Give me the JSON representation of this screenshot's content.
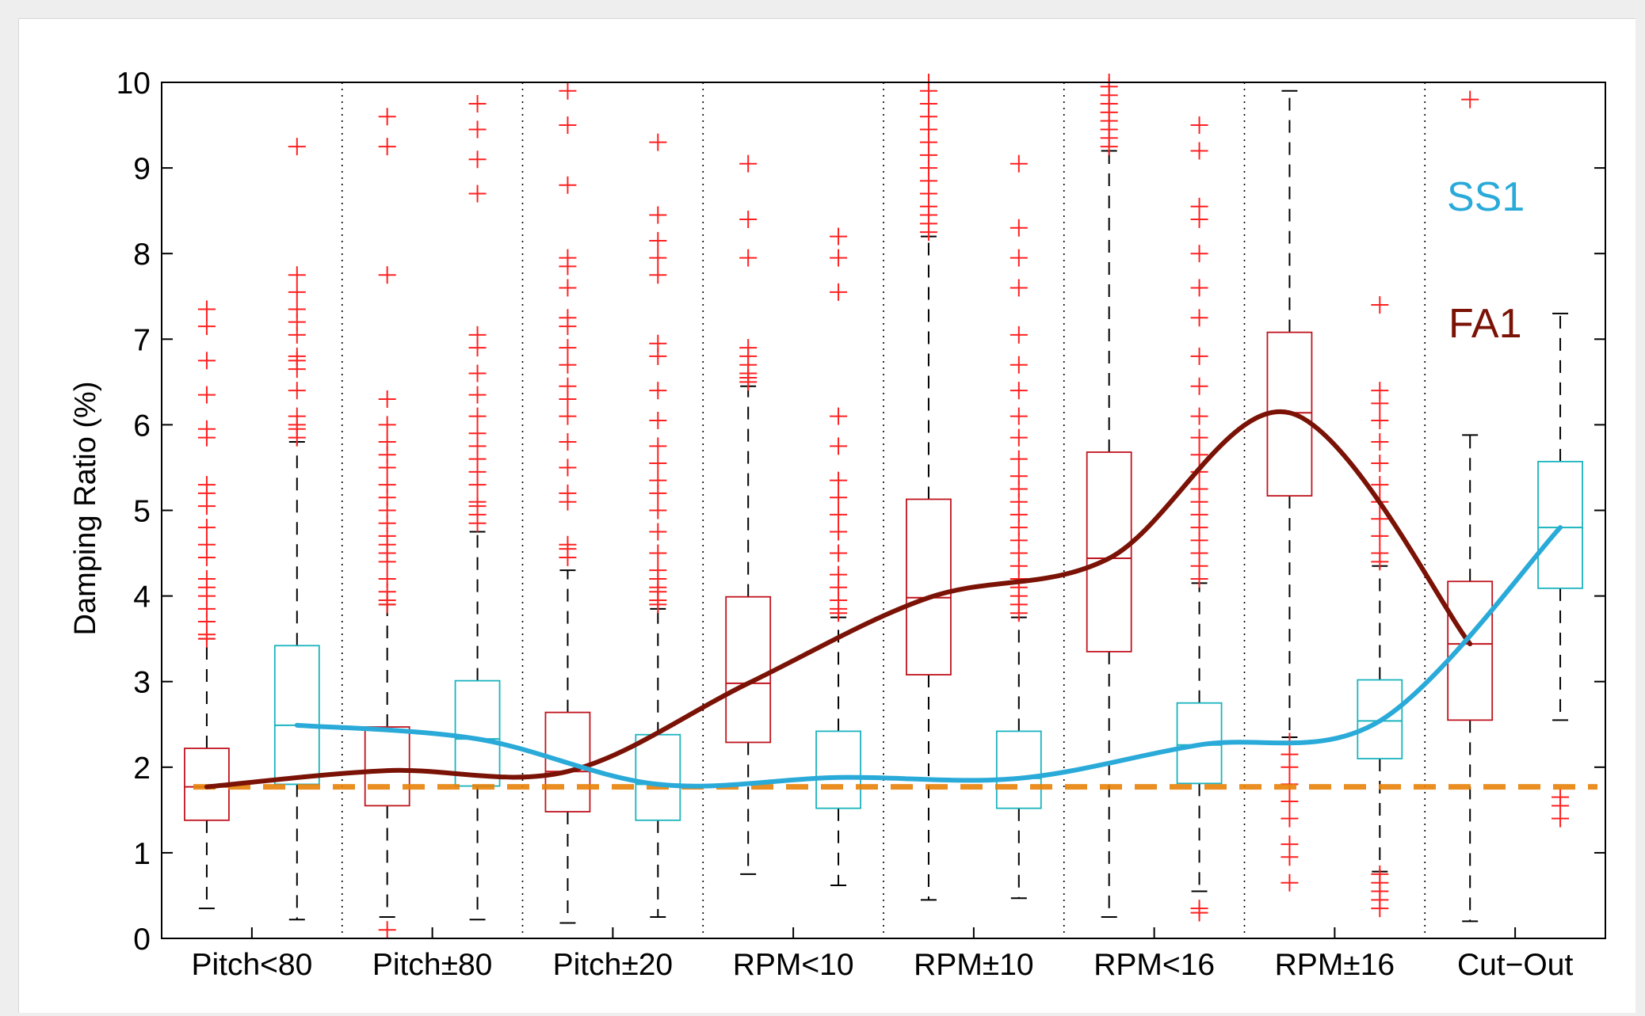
{
  "chart_data": {
    "type": "box",
    "ylabel": "Damping Ratio (%)",
    "xlabel": "",
    "ylim": [
      0,
      10
    ],
    "yticks": [
      0,
      1,
      2,
      3,
      4,
      5,
      6,
      7,
      8,
      9,
      10
    ],
    "grid": "dotted vertical separators between groups",
    "legend_position": "top-right (inline labels)",
    "categories": [
      "Pitch<80",
      "Pitch±80",
      "Pitch±20",
      "RPM<10",
      "RPM±10",
      "RPM<16",
      "RPM±16",
      "Cut−Out"
    ],
    "colors": {
      "FA1": "#c0141e",
      "SS1": "#19b4be",
      "FA1_trend": "#7a1206",
      "SS1_trend": "#2aaad8",
      "reference": "#e8820a",
      "outlier": "#ff2020"
    },
    "series": [
      {
        "name": "FA1",
        "boxes": [
          {
            "category": "Pitch<80",
            "q1": 1.38,
            "median": 1.77,
            "q3": 2.22,
            "whisker_low": 0.35,
            "whisker_high": 3.5,
            "outliers": [
              3.5,
              3.55,
              3.7,
              3.85,
              4.0,
              4.1,
              4.2,
              4.45,
              4.6,
              4.8,
              5.05,
              5.2,
              5.3,
              5.85,
              5.95,
              6.35,
              6.75,
              7.15,
              7.35
            ]
          },
          {
            "category": "Pitch±80",
            "q1": 1.55,
            "median": 1.96,
            "q3": 2.47,
            "whisker_low": 0.25,
            "whisker_high": 3.9,
            "outliers": [
              0.1,
              3.9,
              3.95,
              4.05,
              4.2,
              4.4,
              4.5,
              4.6,
              4.7,
              4.85,
              5.0,
              5.15,
              5.3,
              5.5,
              5.65,
              5.8,
              6.0,
              6.3,
              7.75,
              9.25,
              9.6
            ]
          },
          {
            "category": "Pitch±20",
            "q1": 1.48,
            "median": 1.95,
            "q3": 2.64,
            "whisker_low": 0.18,
            "whisker_high": 4.3,
            "outliers": [
              4.45,
              4.55,
              4.6,
              5.1,
              5.2,
              5.5,
              5.8,
              6.1,
              6.3,
              6.45,
              6.7,
              6.9,
              7.15,
              7.25,
              7.6,
              7.85,
              7.95,
              8.8,
              9.5,
              9.9
            ]
          },
          {
            "category": "RPM<10",
            "q1": 2.29,
            "median": 2.98,
            "q3": 3.99,
            "whisker_low": 0.75,
            "whisker_high": 6.45,
            "outliers": [
              6.5,
              6.55,
              6.6,
              6.7,
              6.8,
              6.9,
              7.95,
              8.4,
              9.05
            ]
          },
          {
            "category": "RPM±10",
            "q1": 3.08,
            "median": 3.98,
            "q3": 5.13,
            "whisker_low": 0.45,
            "whisker_high": 8.2,
            "outliers": [
              8.25,
              8.35,
              8.45,
              8.55,
              8.7,
              8.85,
              9.0,
              9.15,
              9.3,
              9.45,
              9.6,
              9.75,
              9.9,
              10.0
            ]
          },
          {
            "category": "RPM<16",
            "q1": 3.35,
            "median": 4.44,
            "q3": 5.68,
            "whisker_low": 0.25,
            "whisker_high": 9.2,
            "outliers": [
              9.25,
              9.35,
              9.45,
              9.55,
              9.65,
              9.75,
              9.85,
              9.95,
              10.0
            ]
          },
          {
            "category": "RPM±16",
            "q1": 5.17,
            "median": 6.14,
            "q3": 7.08,
            "whisker_low": 2.35,
            "whisker_high": 9.9,
            "outliers": [
              0.65,
              0.95,
              1.1,
              1.4,
              1.6,
              1.8,
              2.0,
              2.15,
              2.3
            ]
          },
          {
            "category": "Cut−Out",
            "q1": 2.55,
            "median": 3.44,
            "q3": 4.17,
            "whisker_low": 0.2,
            "whisker_high": 5.88,
            "outliers": [
              9.8
            ]
          }
        ],
        "trend": [
          1.77,
          1.96,
          1.95,
          2.98,
          3.98,
          4.44,
          6.14,
          3.44
        ]
      },
      {
        "name": "SS1",
        "boxes": [
          {
            "category": "Pitch<80",
            "q1": 1.8,
            "median": 2.49,
            "q3": 3.42,
            "whisker_low": 0.22,
            "whisker_high": 5.8,
            "outliers": [
              5.85,
              5.95,
              6.0,
              6.1,
              6.4,
              6.65,
              6.75,
              6.8,
              7.05,
              7.2,
              7.35,
              7.55,
              7.75,
              9.25
            ]
          },
          {
            "category": "Pitch±80",
            "q1": 1.78,
            "median": 2.33,
            "q3": 3.01,
            "whisker_low": 0.22,
            "whisker_high": 4.75,
            "outliers": [
              4.85,
              4.95,
              5.05,
              5.1,
              5.3,
              5.45,
              5.6,
              5.75,
              5.9,
              6.1,
              6.35,
              6.6,
              6.9,
              7.05,
              8.7,
              9.1,
              9.45,
              9.75
            ]
          },
          {
            "category": "Pitch±20",
            "q1": 1.38,
            "median": 1.8,
            "q3": 2.38,
            "whisker_low": 0.25,
            "whisker_high": 3.85,
            "outliers": [
              3.9,
              3.95,
              4.05,
              4.1,
              4.2,
              4.3,
              4.5,
              4.75,
              5.0,
              5.2,
              5.35,
              5.55,
              5.75,
              6.05,
              6.4,
              6.8,
              6.95,
              7.75,
              7.95,
              8.15,
              8.45,
              9.3
            ]
          },
          {
            "category": "RPM<10",
            "q1": 1.52,
            "median": 1.88,
            "q3": 2.42,
            "whisker_low": 0.62,
            "whisker_high": 3.75,
            "outliers": [
              3.8,
              3.85,
              3.95,
              4.1,
              4.25,
              4.5,
              4.75,
              4.95,
              5.15,
              5.35,
              5.75,
              6.1,
              7.55,
              7.95,
              8.2
            ]
          },
          {
            "category": "RPM±10",
            "q1": 1.52,
            "median": 1.87,
            "q3": 2.42,
            "whisker_low": 0.47,
            "whisker_high": 3.75,
            "outliers": [
              3.8,
              3.9,
              4.0,
              4.1,
              4.2,
              4.35,
              4.5,
              4.65,
              4.8,
              4.95,
              5.1,
              5.25,
              5.4,
              5.6,
              5.85,
              6.1,
              6.4,
              6.7,
              7.05,
              7.6,
              7.95,
              8.3,
              9.05
            ]
          },
          {
            "category": "RPM<16",
            "q1": 1.81,
            "median": 2.26,
            "q3": 2.75,
            "whisker_low": 0.55,
            "whisker_high": 4.15,
            "outliers": [
              0.3,
              0.35,
              4.2,
              4.35,
              4.5,
              4.65,
              4.8,
              4.95,
              5.1,
              5.25,
              5.45,
              5.65,
              5.85,
              6.1,
              6.45,
              6.8,
              7.25,
              7.6,
              8.0,
              8.4,
              8.55,
              9.2,
              9.5
            ]
          },
          {
            "category": "RPM±16",
            "q1": 2.1,
            "median": 2.54,
            "q3": 3.02,
            "whisker_low": 0.78,
            "whisker_high": 4.35,
            "outliers": [
              0.35,
              0.45,
              0.55,
              0.65,
              0.75,
              4.4,
              4.5,
              4.7,
              4.9,
              5.1,
              5.3,
              5.55,
              5.8,
              6.05,
              6.25,
              6.4,
              7.4
            ]
          },
          {
            "category": "Cut−Out",
            "q1": 4.09,
            "median": 4.8,
            "q3": 5.57,
            "whisker_low": 2.55,
            "whisker_high": 7.3,
            "outliers": [
              1.4,
              1.55,
              1.65
            ]
          }
        ],
        "trend": [
          2.49,
          2.33,
          1.8,
          1.88,
          1.87,
          2.26,
          2.54,
          4.8
        ]
      }
    ],
    "reference_line": {
      "y": 1.77,
      "style": "dashed"
    },
    "annotations": [
      "SS1",
      "FA1"
    ]
  }
}
